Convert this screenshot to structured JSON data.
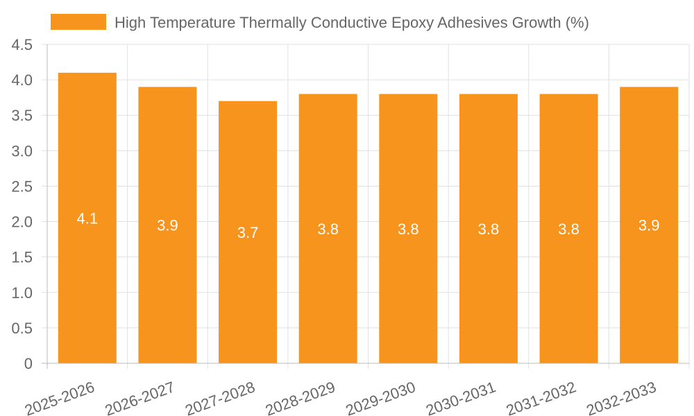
{
  "chart_data": {
    "type": "bar",
    "categories": [
      "2025-2026",
      "2026-2027",
      "2027-2028",
      "2028-2029",
      "2029-2030",
      "2030-2031",
      "2031-2032",
      "2032-2033"
    ],
    "series": [
      {
        "name": "High Temperature Thermally Conductive Epoxy Adhesives Growth (%)",
        "values": [
          4.1,
          3.9,
          3.7,
          3.8,
          3.8,
          3.8,
          3.8,
          3.9
        ]
      }
    ],
    "data_labels": [
      "4.1",
      "3.9",
      "3.7",
      "3.8",
      "3.8",
      "3.8",
      "3.8",
      "3.9"
    ],
    "y_ticks": [
      "0",
      "0.5",
      "1.0",
      "1.5",
      "2.0",
      "2.5",
      "3.0",
      "3.5",
      "4.0",
      "4.5"
    ],
    "ylim": [
      0,
      4.5
    ],
    "legend_position": "top",
    "grid": true,
    "colors": {
      "bar": "#F7941D",
      "grid": "#e0e0e0",
      "axis": "#bbbbbb",
      "text": "#666666",
      "data_label": "#ffffff"
    }
  }
}
